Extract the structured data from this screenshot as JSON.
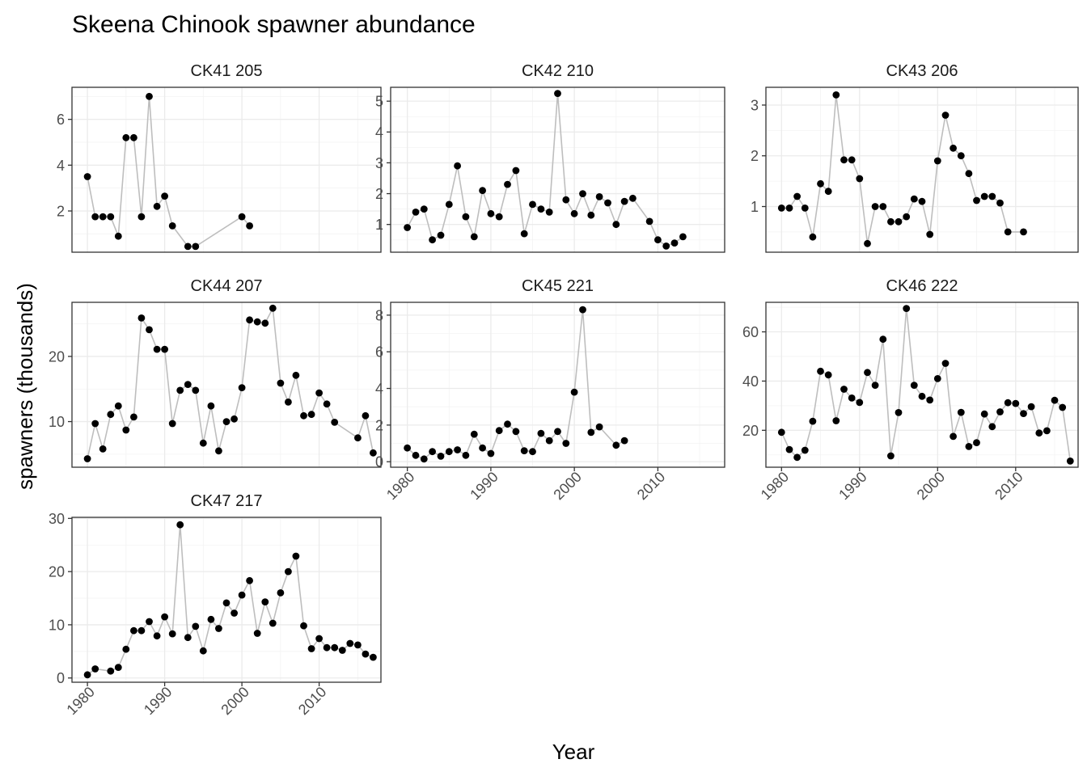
{
  "chart_data": {
    "type": "scatter",
    "title": "Skeena Chinook spawner abundance",
    "xlabel": "Year",
    "ylabel": "spawners (thousands)",
    "x_ticks": [
      1980,
      1990,
      2000,
      2010
    ],
    "xlim": [
      1978,
      2018
    ],
    "line_color": "#bebebe",
    "point_color": "#000000",
    "panels": [
      {
        "label": "CK41 205",
        "ylim": [
          0.2,
          7.4
        ],
        "y_ticks": [
          2,
          4,
          6
        ],
        "points": [
          [
            1980,
            3.5
          ],
          [
            1981,
            1.75
          ],
          [
            1982,
            1.75
          ],
          [
            1983,
            1.75
          ],
          [
            1984,
            0.9
          ],
          [
            1985,
            5.2
          ],
          [
            1986,
            5.2
          ],
          [
            1987,
            1.75
          ],
          [
            1988,
            7.0
          ],
          [
            1989,
            2.2
          ],
          [
            1990,
            2.65
          ],
          [
            1991,
            1.35
          ],
          [
            1993,
            0.45
          ],
          [
            1994,
            0.45
          ],
          [
            2000,
            1.75
          ],
          [
            2001,
            1.35
          ]
        ]
      },
      {
        "label": "CK42 210",
        "ylim": [
          0.1,
          5.45
        ],
        "y_ticks": [
          1,
          2,
          3,
          4,
          5
        ],
        "points": [
          [
            1980,
            0.9
          ],
          [
            1981,
            1.4
          ],
          [
            1982,
            1.5
          ],
          [
            1983,
            0.5
          ],
          [
            1984,
            0.65
          ],
          [
            1985,
            1.65
          ],
          [
            1986,
            2.9
          ],
          [
            1987,
            1.25
          ],
          [
            1988,
            0.6
          ],
          [
            1989,
            2.1
          ],
          [
            1990,
            1.35
          ],
          [
            1991,
            1.25
          ],
          [
            1992,
            2.3
          ],
          [
            1993,
            2.75
          ],
          [
            1994,
            0.7
          ],
          [
            1995,
            1.65
          ],
          [
            1996,
            1.5
          ],
          [
            1997,
            1.4
          ],
          [
            1998,
            5.25
          ],
          [
            1999,
            1.8
          ],
          [
            2000,
            1.35
          ],
          [
            2001,
            2.0
          ],
          [
            2002,
            1.3
          ],
          [
            2003,
            1.9
          ],
          [
            2004,
            1.7
          ],
          [
            2005,
            1.0
          ],
          [
            2006,
            1.75
          ],
          [
            2007,
            1.85
          ],
          [
            2009,
            1.1
          ],
          [
            2010,
            0.5
          ],
          [
            2011,
            0.3
          ],
          [
            2012,
            0.4
          ],
          [
            2013,
            0.6
          ]
        ]
      },
      {
        "label": "CK43 206",
        "ylim": [
          0.1,
          3.35
        ],
        "y_ticks": [
          1,
          2,
          3
        ],
        "points": [
          [
            1980,
            0.97
          ],
          [
            1981,
            0.97
          ],
          [
            1982,
            1.2
          ],
          [
            1983,
            0.97
          ],
          [
            1984,
            0.4
          ],
          [
            1985,
            1.45
          ],
          [
            1986,
            1.3
          ],
          [
            1987,
            3.2
          ],
          [
            1988,
            1.92
          ],
          [
            1989,
            1.92
          ],
          [
            1990,
            1.55
          ],
          [
            1991,
            0.27
          ],
          [
            1992,
            1.0
          ],
          [
            1993,
            1.0
          ],
          [
            1994,
            0.7
          ],
          [
            1995,
            0.7
          ],
          [
            1996,
            0.8
          ],
          [
            1997,
            1.15
          ],
          [
            1998,
            1.1
          ],
          [
            1999,
            0.45
          ],
          [
            2000,
            1.9
          ],
          [
            2001,
            2.8
          ],
          [
            2002,
            2.15
          ],
          [
            2003,
            2.0
          ],
          [
            2004,
            1.65
          ],
          [
            2005,
            1.12
          ],
          [
            2006,
            1.2
          ],
          [
            2007,
            1.2
          ],
          [
            2008,
            1.07
          ],
          [
            2009,
            0.5
          ],
          [
            2011,
            0.5
          ]
        ]
      },
      {
        "label": "CK44 207",
        "ylim": [
          3.0,
          28.3
        ],
        "y_ticks": [
          10,
          20
        ],
        "points": [
          [
            1980,
            4.3
          ],
          [
            1981,
            9.7
          ],
          [
            1982,
            5.8
          ],
          [
            1983,
            11.1
          ],
          [
            1984,
            12.4
          ],
          [
            1985,
            8.7
          ],
          [
            1986,
            10.7
          ],
          [
            1987,
            25.9
          ],
          [
            1988,
            24.1
          ],
          [
            1989,
            21.1
          ],
          [
            1990,
            21.1
          ],
          [
            1991,
            9.7
          ],
          [
            1992,
            14.8
          ],
          [
            1993,
            15.7
          ],
          [
            1994,
            14.8
          ],
          [
            1995,
            6.7
          ],
          [
            1996,
            12.4
          ],
          [
            1997,
            5.5
          ],
          [
            1998,
            10.0
          ],
          [
            1999,
            10.4
          ],
          [
            2000,
            15.2
          ],
          [
            2001,
            25.6
          ],
          [
            2002,
            25.3
          ],
          [
            2003,
            25.1
          ],
          [
            2004,
            27.4
          ],
          [
            2005,
            15.9
          ],
          [
            2006,
            13.0
          ],
          [
            2007,
            17.1
          ],
          [
            2008,
            10.9
          ],
          [
            2009,
            11.1
          ],
          [
            2010,
            14.4
          ],
          [
            2011,
            12.7
          ],
          [
            2012,
            9.9
          ],
          [
            2015,
            7.5
          ],
          [
            2016,
            10.9
          ],
          [
            2017,
            5.2
          ]
        ]
      },
      {
        "label": "CK45 221",
        "ylim": [
          -0.3,
          8.7
        ],
        "y_ticks": [
          0,
          2,
          4,
          6,
          8
        ],
        "points": [
          [
            1980,
            0.75
          ],
          [
            1981,
            0.35
          ],
          [
            1982,
            0.15
          ],
          [
            1983,
            0.55
          ],
          [
            1984,
            0.3
          ],
          [
            1985,
            0.55
          ],
          [
            1986,
            0.65
          ],
          [
            1987,
            0.35
          ],
          [
            1988,
            1.5
          ],
          [
            1989,
            0.75
          ],
          [
            1990,
            0.45
          ],
          [
            1991,
            1.7
          ],
          [
            1992,
            2.05
          ],
          [
            1993,
            1.65
          ],
          [
            1994,
            0.6
          ],
          [
            1995,
            0.55
          ],
          [
            1996,
            1.55
          ],
          [
            1997,
            1.15
          ],
          [
            1998,
            1.65
          ],
          [
            1999,
            1.0
          ],
          [
            2000,
            3.8
          ],
          [
            2001,
            8.3
          ],
          [
            2002,
            1.6
          ],
          [
            2003,
            1.9
          ],
          [
            2005,
            0.9
          ],
          [
            2006,
            1.15
          ]
        ]
      },
      {
        "label": "CK46 222",
        "ylim": [
          5.0,
          72.0
        ],
        "y_ticks": [
          20,
          40,
          60
        ],
        "points": [
          [
            1980,
            19.2
          ],
          [
            1981,
            12.2
          ],
          [
            1982,
            9.0
          ],
          [
            1983,
            11.9
          ],
          [
            1984,
            23.7
          ],
          [
            1985,
            44.0
          ],
          [
            1986,
            42.5
          ],
          [
            1987,
            23.9
          ],
          [
            1988,
            36.7
          ],
          [
            1989,
            33.1
          ],
          [
            1990,
            31.3
          ],
          [
            1991,
            43.5
          ],
          [
            1992,
            38.3
          ],
          [
            1993,
            57.0
          ],
          [
            1994,
            9.6
          ],
          [
            1995,
            27.2
          ],
          [
            1996,
            69.5
          ],
          [
            1997,
            38.3
          ],
          [
            1998,
            33.8
          ],
          [
            1999,
            32.3
          ],
          [
            2000,
            41.0
          ],
          [
            2001,
            47.2
          ],
          [
            2002,
            17.5
          ],
          [
            2003,
            27.3
          ],
          [
            2004,
            13.4
          ],
          [
            2005,
            15.0
          ],
          [
            2006,
            26.6
          ],
          [
            2007,
            21.5
          ],
          [
            2008,
            27.5
          ],
          [
            2009,
            31.2
          ],
          [
            2010,
            30.9
          ],
          [
            2011,
            26.8
          ],
          [
            2012,
            29.6
          ],
          [
            2013,
            18.9
          ],
          [
            2014,
            19.8
          ],
          [
            2015,
            32.2
          ],
          [
            2016,
            29.3
          ],
          [
            2017,
            7.5
          ]
        ]
      },
      {
        "label": "CK47 217",
        "ylim": [
          -0.8,
          30.2
        ],
        "y_ticks": [
          0,
          10,
          20,
          30
        ],
        "points": [
          [
            1980,
            0.6
          ],
          [
            1981,
            1.7
          ],
          [
            1983,
            1.3
          ],
          [
            1984,
            2.0
          ],
          [
            1985,
            5.4
          ],
          [
            1986,
            8.9
          ],
          [
            1987,
            8.9
          ],
          [
            1988,
            10.6
          ],
          [
            1989,
            7.9
          ],
          [
            1990,
            11.5
          ],
          [
            1991,
            8.3
          ],
          [
            1992,
            28.8
          ],
          [
            1993,
            7.6
          ],
          [
            1994,
            9.7
          ],
          [
            1995,
            5.1
          ],
          [
            1996,
            11.0
          ],
          [
            1997,
            9.3
          ],
          [
            1998,
            14.1
          ],
          [
            1999,
            12.2
          ],
          [
            2000,
            15.6
          ],
          [
            2001,
            18.3
          ],
          [
            2002,
            8.4
          ],
          [
            2003,
            14.3
          ],
          [
            2004,
            10.3
          ],
          [
            2005,
            16.0
          ],
          [
            2006,
            20.0
          ],
          [
            2007,
            22.9
          ],
          [
            2008,
            9.8
          ],
          [
            2009,
            5.5
          ],
          [
            2010,
            7.4
          ],
          [
            2011,
            5.7
          ],
          [
            2012,
            5.7
          ],
          [
            2013,
            5.2
          ],
          [
            2014,
            6.5
          ],
          [
            2015,
            6.2
          ],
          [
            2016,
            4.5
          ],
          [
            2017,
            3.9
          ]
        ]
      }
    ]
  }
}
